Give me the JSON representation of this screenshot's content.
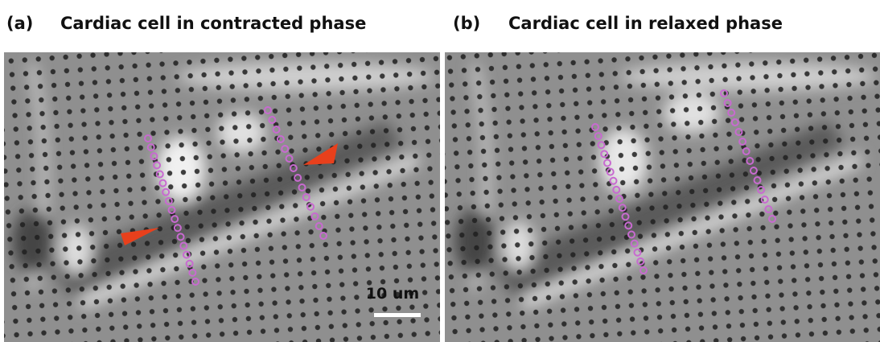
{
  "panels": [
    {
      "label": "(a)",
      "title": "Cardiac cell in contracted phase",
      "scale_bar": "10 um"
    },
    {
      "label": "(b)",
      "title": "Cardiac cell in relaxed phase"
    }
  ]
}
